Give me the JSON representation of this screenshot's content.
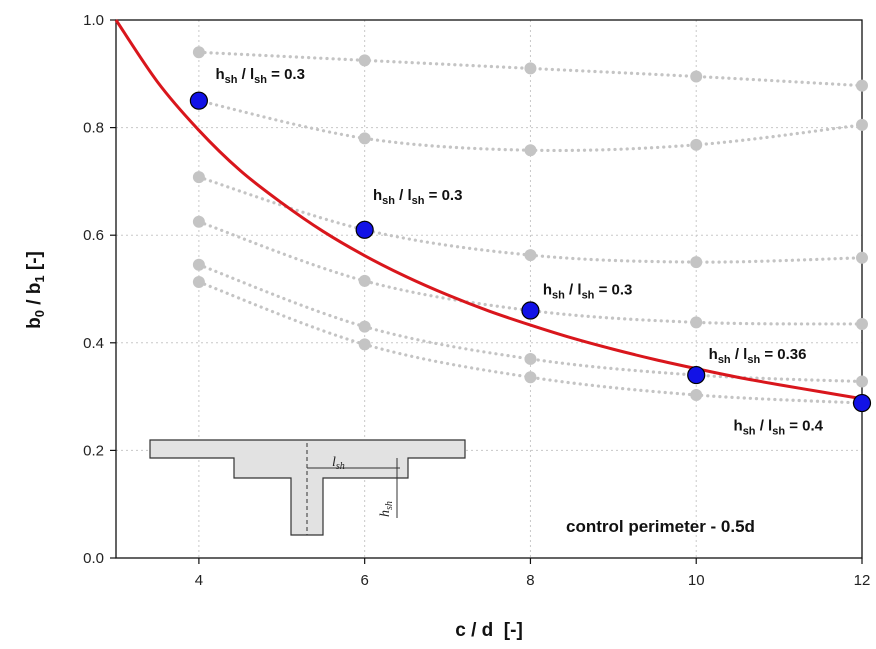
{
  "chart_data": {
    "type": "scatter",
    "xlabel": "c / d",
    "xlabel_unit": "[-]",
    "ylabel": "b",
    "ylabel_parts": {
      "b0_sub": "0",
      "b1_sub": "1",
      "sep": " / ",
      "unit": "[-]"
    },
    "xlim": [
      3,
      12
    ],
    "ylim": [
      0.0,
      1.0
    ],
    "x_ticks": [
      4,
      6,
      8,
      10,
      12
    ],
    "x_tick_labels": [
      "4",
      "6",
      "8",
      "10",
      "12"
    ],
    "y_ticks": [
      0.0,
      0.2,
      0.4,
      0.6,
      0.8,
      1.0
    ],
    "y_tick_labels": [
      "0.0",
      "0.2",
      "0.4",
      "0.6",
      "0.8",
      "1.0"
    ],
    "grid": true,
    "gray_series": [
      {
        "x": [
          4,
          6,
          8,
          10,
          12
        ],
        "y": [
          0.94,
          0.925,
          0.91,
          0.895,
          0.878
        ]
      },
      {
        "x": [
          4,
          6,
          8,
          10,
          12
        ],
        "y": [
          0.85,
          0.78,
          0.758,
          0.768,
          0.805
        ]
      },
      {
        "x": [
          4,
          6,
          8,
          10,
          12
        ],
        "y": [
          0.708,
          0.61,
          0.563,
          0.55,
          0.558
        ]
      },
      {
        "x": [
          4,
          6,
          8,
          10,
          12
        ],
        "y": [
          0.625,
          0.515,
          0.46,
          0.438,
          0.435
        ]
      },
      {
        "x": [
          4,
          6,
          8,
          10,
          12
        ],
        "y": [
          0.545,
          0.43,
          0.37,
          0.34,
          0.328
        ]
      },
      {
        "x": [
          4,
          6,
          8,
          10,
          12
        ],
        "y": [
          0.513,
          0.397,
          0.336,
          0.303,
          0.288
        ]
      }
    ],
    "blue_points": {
      "x": [
        4,
        6,
        8,
        10,
        12
      ],
      "y": [
        0.85,
        0.61,
        0.46,
        0.34,
        0.288
      ]
    },
    "red_curve": {
      "x": [
        3,
        3.5,
        4,
        4.5,
        5,
        5.5,
        6,
        6.5,
        7,
        7.5,
        8,
        8.5,
        9,
        9.5,
        10,
        10.5,
        11,
        11.5,
        12
      ],
      "y": [
        1.0,
        0.885,
        0.795,
        0.72,
        0.66,
        0.607,
        0.562,
        0.523,
        0.489,
        0.459,
        0.433,
        0.409,
        0.388,
        0.369,
        0.352,
        0.336,
        0.322,
        0.309,
        0.296
      ]
    },
    "annotations": [
      {
        "main": "h",
        "sub1": "sh",
        "sep": " / l",
        "sub2": "sh",
        "value": " = 0.3"
      },
      {
        "main": "h",
        "sub1": "sh",
        "sep": " / l",
        "sub2": "sh",
        "value": " = 0.3"
      },
      {
        "main": "h",
        "sub1": "sh",
        "sep": " / l",
        "sub2": "sh",
        "value": " = 0.3"
      },
      {
        "main": "h",
        "sub1": "sh",
        "sep": " / l",
        "sub2": "sh",
        "value": " = 0.36"
      },
      {
        "main": "h",
        "sub1": "sh",
        "sep": " / l",
        "sub2": "sh",
        "value": " = 0.4"
      }
    ],
    "footnote": "control perimeter - 0.5d",
    "inset": {
      "l_main": "l",
      "l_sub": "sh",
      "h_main": "h",
      "h_sub": "sh"
    },
    "colors": {
      "red": "#d9161c",
      "blue": "#1212e6",
      "gray": "#c4c4c4",
      "grid": "#c8c8c8"
    }
  }
}
